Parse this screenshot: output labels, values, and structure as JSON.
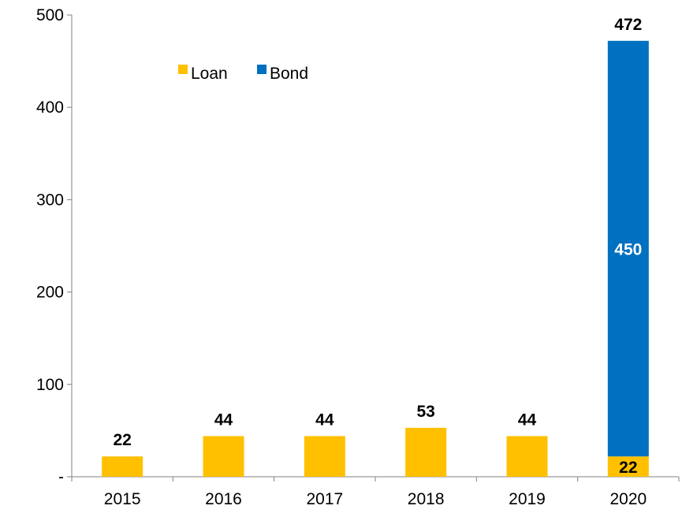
{
  "chart_data": {
    "type": "bar",
    "stacked": true,
    "categories": [
      "2015",
      "2016",
      "2017",
      "2018",
      "2019",
      "2020"
    ],
    "series": [
      {
        "name": "Loan",
        "color": "#FFC000",
        "values": [
          22,
          44,
          44,
          53,
          44,
          22
        ]
      },
      {
        "name": "Bond",
        "color": "#0070C0",
        "values": [
          0,
          0,
          0,
          0,
          0,
          450
        ]
      }
    ],
    "totals": [
      22,
      44,
      44,
      53,
      44,
      472
    ],
    "ylim": [
      0,
      500
    ],
    "yticks": [
      0,
      100,
      200,
      300,
      400,
      500
    ],
    "ytick_labels": [
      "-",
      "100",
      "200",
      "300",
      "400",
      "500"
    ],
    "legend": {
      "placement": "top-left",
      "entries": [
        "Loan",
        "Bond"
      ]
    },
    "grid": false,
    "title": "",
    "xlabel": "",
    "ylabel": ""
  }
}
